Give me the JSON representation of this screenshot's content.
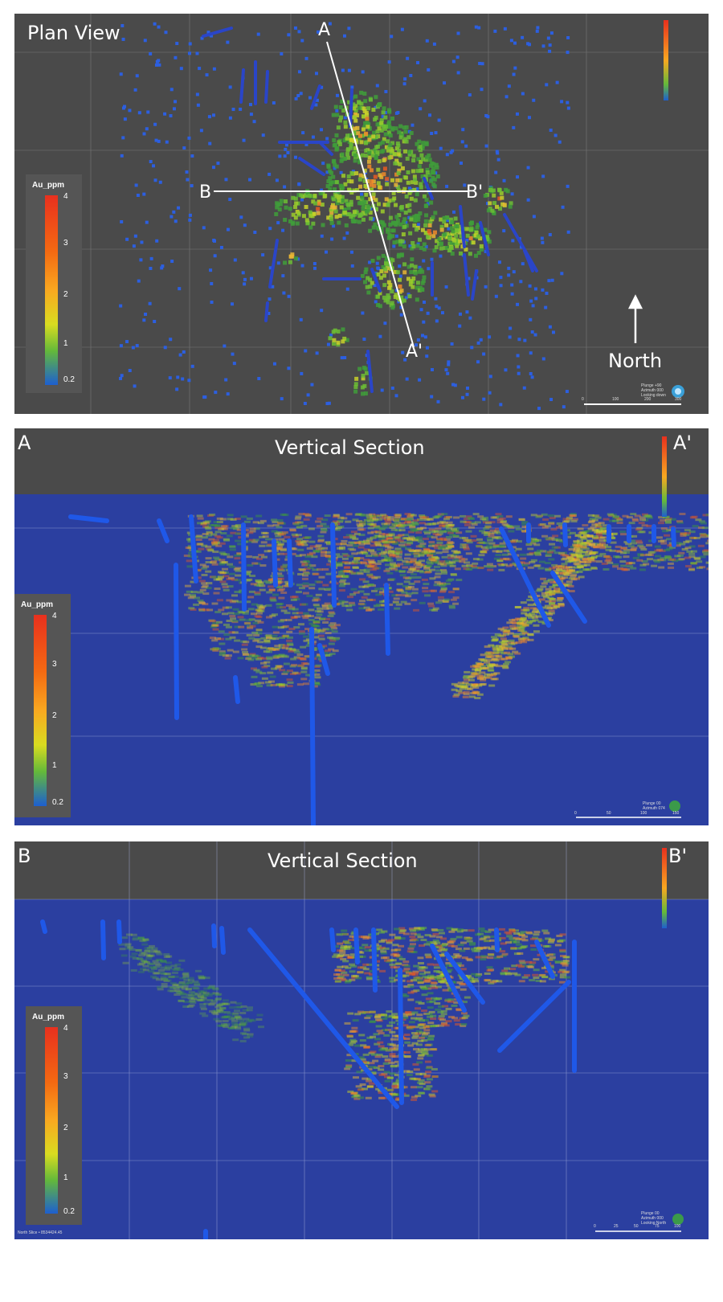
{
  "plan": {
    "title": "Plan View",
    "line_a_start": "A",
    "line_a_end": "A'",
    "line_b_start": "B",
    "line_b_end": "B'",
    "north": "North",
    "legend_title": "Au_ppm",
    "legend_ticks": [
      "4",
      "3",
      "2",
      "1",
      "0.2"
    ],
    "view_info": [
      "Plunge +90",
      "Azimuth 000",
      "Looking down"
    ],
    "scale_ticks": [
      "0",
      "100",
      "200",
      "300"
    ]
  },
  "section_a": {
    "title": "Vertical Section",
    "start": "A",
    "end": "A'",
    "legend_title": "Au_ppm",
    "legend_ticks": [
      "4",
      "3",
      "2",
      "1",
      "0.2"
    ],
    "view_info": [
      "Plunge 00",
      "Azimuth 074"
    ],
    "scale_ticks": [
      "0",
      "50",
      "100",
      "150"
    ]
  },
  "section_b": {
    "title": "Vertical Section",
    "start": "B",
    "end": "B'",
    "legend_title": "Au_ppm",
    "legend_ticks": [
      "4",
      "3",
      "2",
      "1",
      "0.2"
    ],
    "view_info": [
      "Plunge 00",
      "Azimuth 000",
      "Looking North"
    ],
    "slice_info": "North Slice • 8534424.45",
    "scale_ticks": [
      "0",
      "25",
      "50",
      "75",
      "100"
    ]
  },
  "colors": {
    "background_gray": "#4a4a4a",
    "section_blue": "#2b3fa0",
    "grade_high": "#e8301e",
    "grade_mid": "#f9a820",
    "grade_low": "#64b93a",
    "grade_min": "#1d5fd0"
  }
}
